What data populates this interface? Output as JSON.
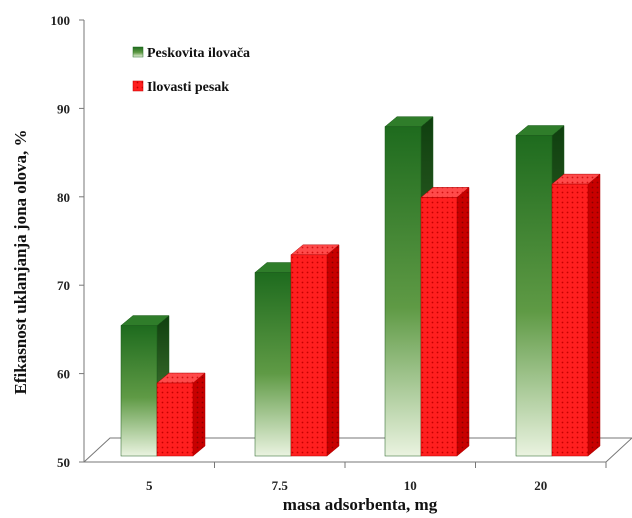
{
  "chart_data": {
    "type": "bar",
    "xlabel": "masa adsorbenta, mg",
    "ylabel": "Efikasnost uklanjanja  jona olova, %",
    "ylim": [
      50,
      100
    ],
    "yticks": [
      "50",
      "60",
      "70",
      "80",
      "90",
      "100"
    ],
    "categories": [
      "5",
      "7.5",
      "10",
      "20"
    ],
    "series": [
      {
        "name": "Peskovita ilovača",
        "values": [
          66,
          72,
          88.5,
          87.5
        ],
        "color": "#1f6e1f"
      },
      {
        "name": "Ilovasti pesak",
        "values": [
          59.5,
          74,
          80.5,
          82
        ],
        "color": "#ff1a1a"
      }
    ],
    "legend_position": "top-left",
    "grid": false,
    "style": "3d"
  }
}
